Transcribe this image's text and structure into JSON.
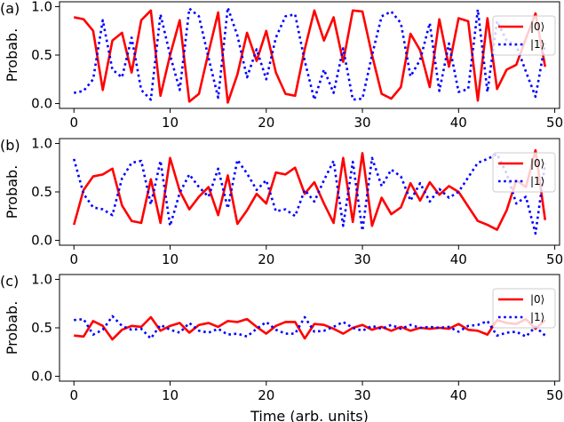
{
  "chart_data": [
    {
      "type": "line",
      "panel_label": "(a)",
      "ylabel": "Probab.",
      "xlabel": "",
      "xlim": [
        -1.5,
        50.5
      ],
      "ylim": [
        -0.05,
        1.05
      ],
      "xticks": [
        "0",
        "10",
        "20",
        "30",
        "40",
        "50"
      ],
      "yticks": [
        "0.0",
        "0.5",
        "1.0"
      ],
      "legend_position": "top-right",
      "series": [
        {
          "name": "|0⟩",
          "color": "#ff0000",
          "style": "solid",
          "values": [
            0.89,
            0.87,
            0.75,
            0.14,
            0.65,
            0.73,
            0.32,
            0.86,
            0.96,
            0.08,
            0.5,
            0.86,
            0.02,
            0.1,
            0.53,
            0.94,
            0.01,
            0.3,
            0.73,
            0.44,
            0.75,
            0.32,
            0.1,
            0.08,
            0.56,
            0.96,
            0.65,
            0.89,
            0.43,
            0.96,
            0.95,
            0.5,
            0.1,
            0.05,
            0.17,
            0.72,
            0.55,
            0.17,
            0.87,
            0.38,
            0.88,
            0.85,
            0.03,
            0.88,
            0.15,
            0.35,
            0.4,
            0.67,
            0.93,
            0.38
          ]
        },
        {
          "name": "|1⟩",
          "color": "#0000ff",
          "style": "dotted",
          "values": [
            0.11,
            0.13,
            0.25,
            0.86,
            0.35,
            0.27,
            0.68,
            0.14,
            0.04,
            0.92,
            0.5,
            0.14,
            0.98,
            0.9,
            0.47,
            0.06,
            0.99,
            0.7,
            0.27,
            0.56,
            0.25,
            0.68,
            0.9,
            0.92,
            0.44,
            0.04,
            0.35,
            0.11,
            0.57,
            0.04,
            0.05,
            0.5,
            0.9,
            0.95,
            0.83,
            0.28,
            0.45,
            0.83,
            0.13,
            0.62,
            0.12,
            0.15,
            0.97,
            0.12,
            0.85,
            0.65,
            0.6,
            0.33,
            0.07,
            0.62
          ]
        }
      ]
    },
    {
      "type": "line",
      "panel_label": "(b)",
      "ylabel": "Probab.",
      "xlabel": "",
      "xlim": [
        -1.5,
        50.5
      ],
      "ylim": [
        -0.05,
        1.05
      ],
      "xticks": [
        "0",
        "10",
        "20",
        "30",
        "40",
        "50"
      ],
      "yticks": [
        "0.0",
        "0.5",
        "1.0"
      ],
      "legend_position": "top-right",
      "series": [
        {
          "name": "|0⟩",
          "color": "#ff0000",
          "style": "solid",
          "values": [
            0.16,
            0.52,
            0.66,
            0.68,
            0.74,
            0.36,
            0.2,
            0.18,
            0.63,
            0.18,
            0.85,
            0.51,
            0.32,
            0.45,
            0.55,
            0.26,
            0.67,
            0.17,
            0.31,
            0.48,
            0.38,
            0.7,
            0.68,
            0.75,
            0.48,
            0.6,
            0.38,
            0.18,
            0.85,
            0.19,
            0.9,
            0.15,
            0.44,
            0.27,
            0.34,
            0.59,
            0.41,
            0.6,
            0.47,
            0.56,
            0.5,
            0.35,
            0.2,
            0.16,
            0.11,
            0.31,
            0.62,
            0.55,
            0.93,
            0.21
          ]
        },
        {
          "name": "|1⟩",
          "color": "#0000ff",
          "style": "dotted",
          "values": [
            0.84,
            0.48,
            0.34,
            0.32,
            0.26,
            0.64,
            0.8,
            0.82,
            0.37,
            0.82,
            0.15,
            0.49,
            0.68,
            0.55,
            0.45,
            0.74,
            0.33,
            0.83,
            0.69,
            0.52,
            0.62,
            0.3,
            0.32,
            0.25,
            0.52,
            0.4,
            0.62,
            0.82,
            0.15,
            0.81,
            0.1,
            0.85,
            0.56,
            0.73,
            0.66,
            0.41,
            0.59,
            0.4,
            0.53,
            0.44,
            0.5,
            0.65,
            0.8,
            0.84,
            0.89,
            0.69,
            0.38,
            0.45,
            0.07,
            0.79
          ]
        }
      ]
    },
    {
      "type": "line",
      "panel_label": "(c)",
      "ylabel": "Probab.",
      "xlabel": "Time (arb. units)",
      "xlim": [
        -1.5,
        50.5
      ],
      "ylim": [
        -0.05,
        1.05
      ],
      "xticks": [
        "0",
        "10",
        "20",
        "30",
        "40",
        "50"
      ],
      "yticks": [
        "0.0",
        "0.5",
        "1.0"
      ],
      "legend_position": "top-right",
      "series": [
        {
          "name": "|0⟩",
          "color": "#ff0000",
          "style": "solid",
          "values": [
            0.42,
            0.41,
            0.57,
            0.52,
            0.38,
            0.48,
            0.52,
            0.51,
            0.61,
            0.47,
            0.52,
            0.55,
            0.45,
            0.53,
            0.55,
            0.51,
            0.57,
            0.56,
            0.59,
            0.51,
            0.44,
            0.52,
            0.56,
            0.56,
            0.39,
            0.54,
            0.53,
            0.49,
            0.44,
            0.5,
            0.53,
            0.48,
            0.51,
            0.47,
            0.51,
            0.47,
            0.5,
            0.49,
            0.5,
            0.49,
            0.54,
            0.48,
            0.47,
            0.43,
            0.58,
            0.55,
            0.54,
            0.59,
            0.49,
            0.58
          ]
        },
        {
          "name": "|1⟩",
          "color": "#0000ff",
          "style": "dotted",
          "values": [
            0.58,
            0.59,
            0.43,
            0.48,
            0.62,
            0.52,
            0.48,
            0.49,
            0.39,
            0.53,
            0.48,
            0.45,
            0.55,
            0.47,
            0.45,
            0.49,
            0.43,
            0.44,
            0.41,
            0.49,
            0.56,
            0.48,
            0.44,
            0.44,
            0.61,
            0.46,
            0.47,
            0.51,
            0.56,
            0.5,
            0.47,
            0.52,
            0.49,
            0.53,
            0.49,
            0.53,
            0.5,
            0.51,
            0.5,
            0.51,
            0.46,
            0.52,
            0.53,
            0.57,
            0.42,
            0.45,
            0.46,
            0.41,
            0.51,
            0.42
          ]
        }
      ]
    }
  ]
}
